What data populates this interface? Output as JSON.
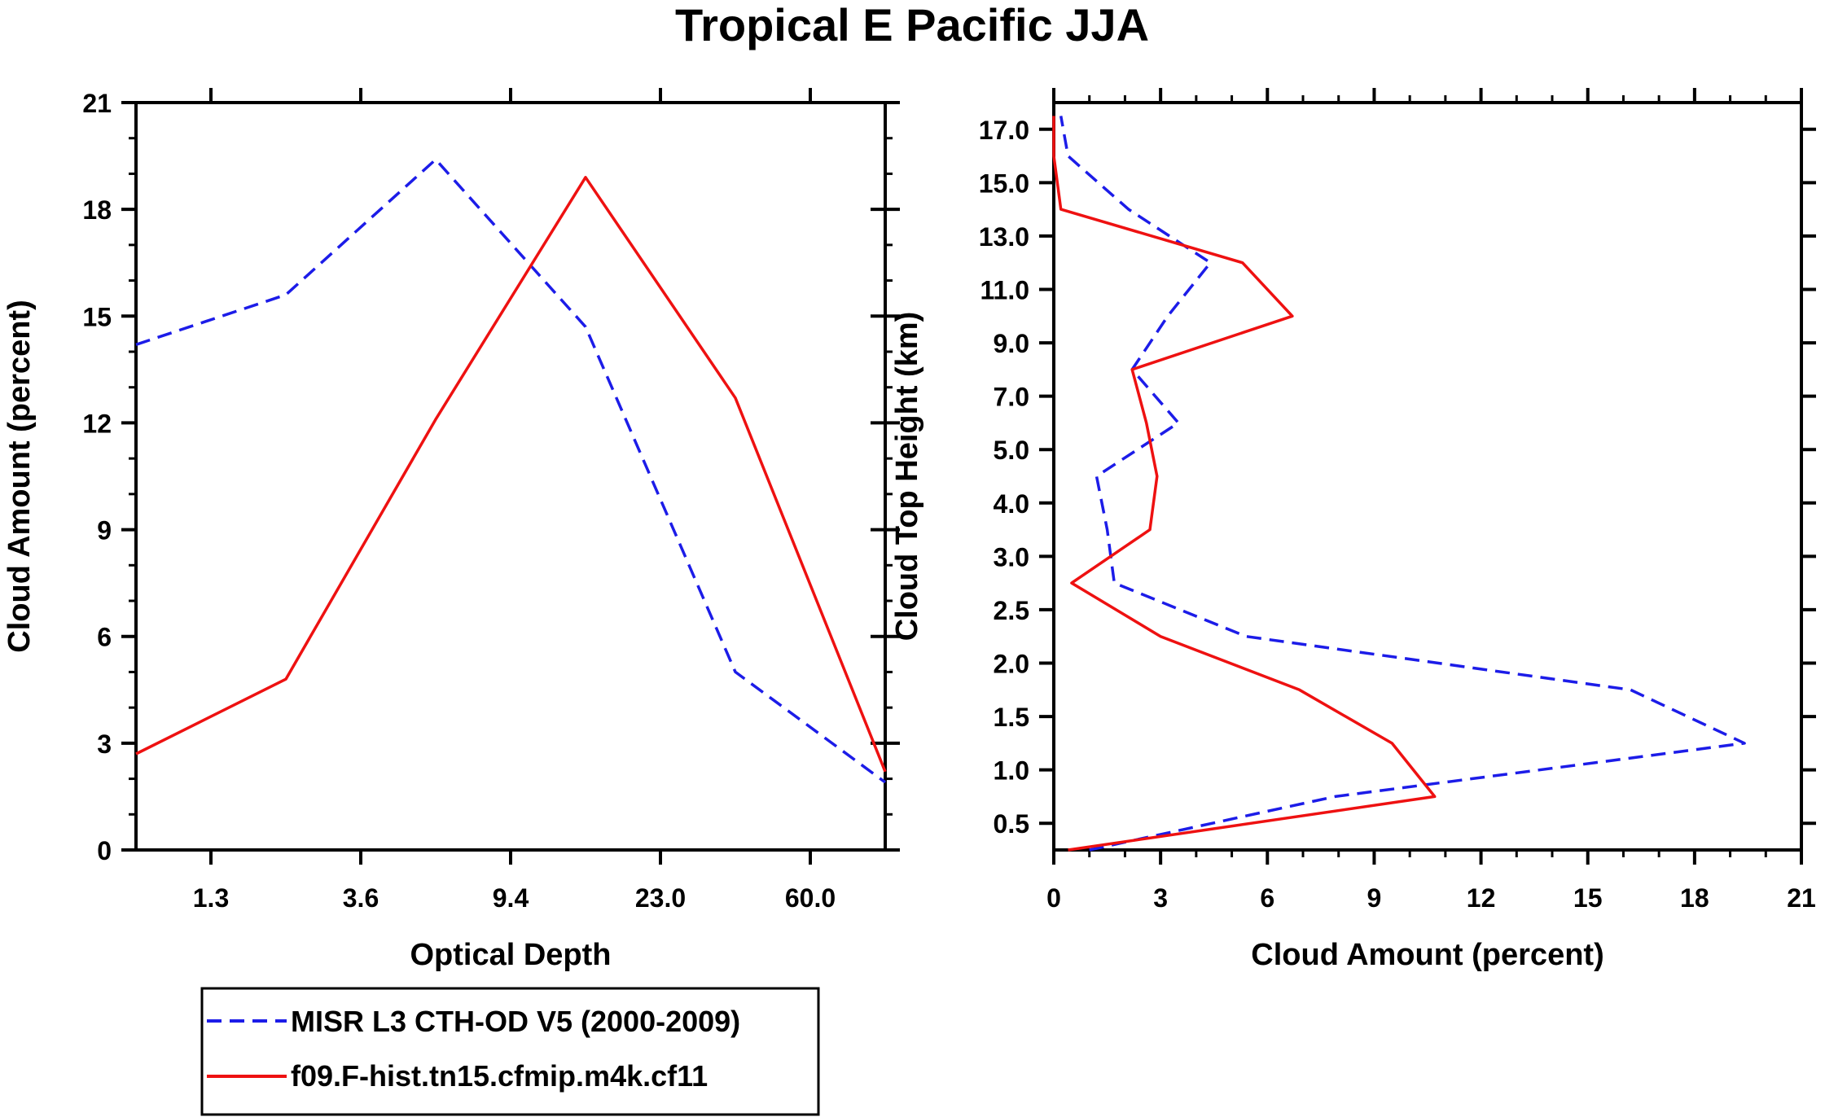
{
  "title": "Tropical E Pacific JJA",
  "colors": {
    "misr": "#1c1ce8",
    "model": "#ee1111",
    "axis": "#000000"
  },
  "legend": {
    "items": [
      {
        "label": "MISR L3 CTH-OD V5 (2000-2009)",
        "style": "dashed",
        "color": "#1c1ce8"
      },
      {
        "label": "f09.F-hist.tn15.cfmip.m4k.cf11",
        "style": "solid",
        "color": "#ee1111"
      }
    ]
  },
  "chart_data": [
    {
      "type": "line",
      "title": "",
      "xlabel": "Optical Depth",
      "ylabel": "Cloud Amount (percent)",
      "x_tick_labels": [
        "1.3",
        "3.6",
        "9.4",
        "23.0",
        "60.0"
      ],
      "x_bin_index": [
        0,
        1,
        2,
        3,
        4,
        5
      ],
      "xlim": [
        0,
        5
      ],
      "ylim": [
        0,
        21
      ],
      "y_ticks": [
        0,
        3,
        6,
        9,
        12,
        15,
        18,
        21
      ],
      "series": [
        {
          "name": "MISR L3 CTH-OD V5 (2000-2009)",
          "style": "dashed",
          "values": [
            14.2,
            15.6,
            19.4,
            14.7,
            5.0,
            1.9
          ]
        },
        {
          "name": "f09.F-hist.tn15.cfmip.m4k.cf11",
          "style": "solid",
          "values": [
            2.7,
            4.8,
            12.1,
            18.9,
            12.7,
            2.2
          ]
        }
      ]
    },
    {
      "type": "line",
      "title": "",
      "xlabel": "Cloud Amount (percent)",
      "ylabel": "Cloud Top Height (km)",
      "xlim": [
        0,
        21
      ],
      "x_ticks": [
        0,
        3,
        6,
        9,
        12,
        15,
        18,
        21
      ],
      "y_tick_labels": [
        "0.5",
        "1.0",
        "1.5",
        "2.0",
        "2.5",
        "3.0",
        "4.0",
        "5.0",
        "7.0",
        "9.0",
        "11.0",
        "13.0",
        "15.0",
        "17.0"
      ],
      "height_bins_km": [
        0,
        0.75,
        1.25,
        1.75,
        2.25,
        2.75,
        3.5,
        4.5,
        6,
        8,
        10,
        12,
        14,
        16,
        17.5
      ],
      "series": [
        {
          "name": "MISR L3 CTH-OD V5 (2000-2009)",
          "style": "dashed",
          "values": [
            1.0,
            7.9,
            19.4,
            16.2,
            5.4,
            1.7,
            1.5,
            1.2,
            3.5,
            2.2,
            3.2,
            4.4,
            2.1,
            0.4,
            0.2
          ]
        },
        {
          "name": "f09.F-hist.tn15.cfmip.m4k.cf11",
          "style": "solid",
          "values": [
            0.4,
            10.7,
            9.5,
            6.9,
            3.0,
            0.5,
            2.7,
            2.9,
            2.6,
            2.2,
            6.7,
            5.3,
            0.2,
            0.0,
            0.0
          ]
        }
      ]
    }
  ]
}
